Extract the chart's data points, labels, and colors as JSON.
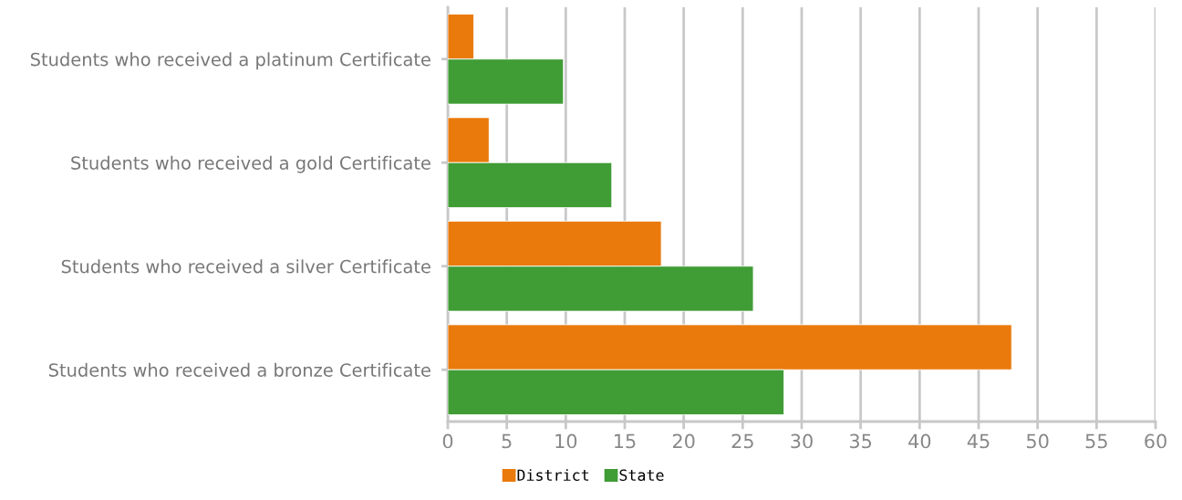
{
  "chart_data": {
    "type": "bar",
    "orientation": "horizontal",
    "categories": [
      "Students who received a platinum Certificate",
      "Students who received a gold Certificate",
      "Students who received a silver Certificate",
      "Students who received a bronze Certificate"
    ],
    "series": [
      {
        "name": "District",
        "color": "#ea7a0b",
        "values": [
          2.2,
          3.5,
          18.1,
          47.8
        ]
      },
      {
        "name": "State",
        "color": "#409c35",
        "values": [
          9.8,
          13.9,
          25.9,
          28.5
        ]
      }
    ],
    "xlim": [
      0,
      60
    ],
    "xticks": [
      0,
      5,
      10,
      15,
      20,
      25,
      30,
      35,
      40,
      45,
      50,
      55,
      60
    ],
    "grid": "x",
    "legend": "bottom"
  }
}
